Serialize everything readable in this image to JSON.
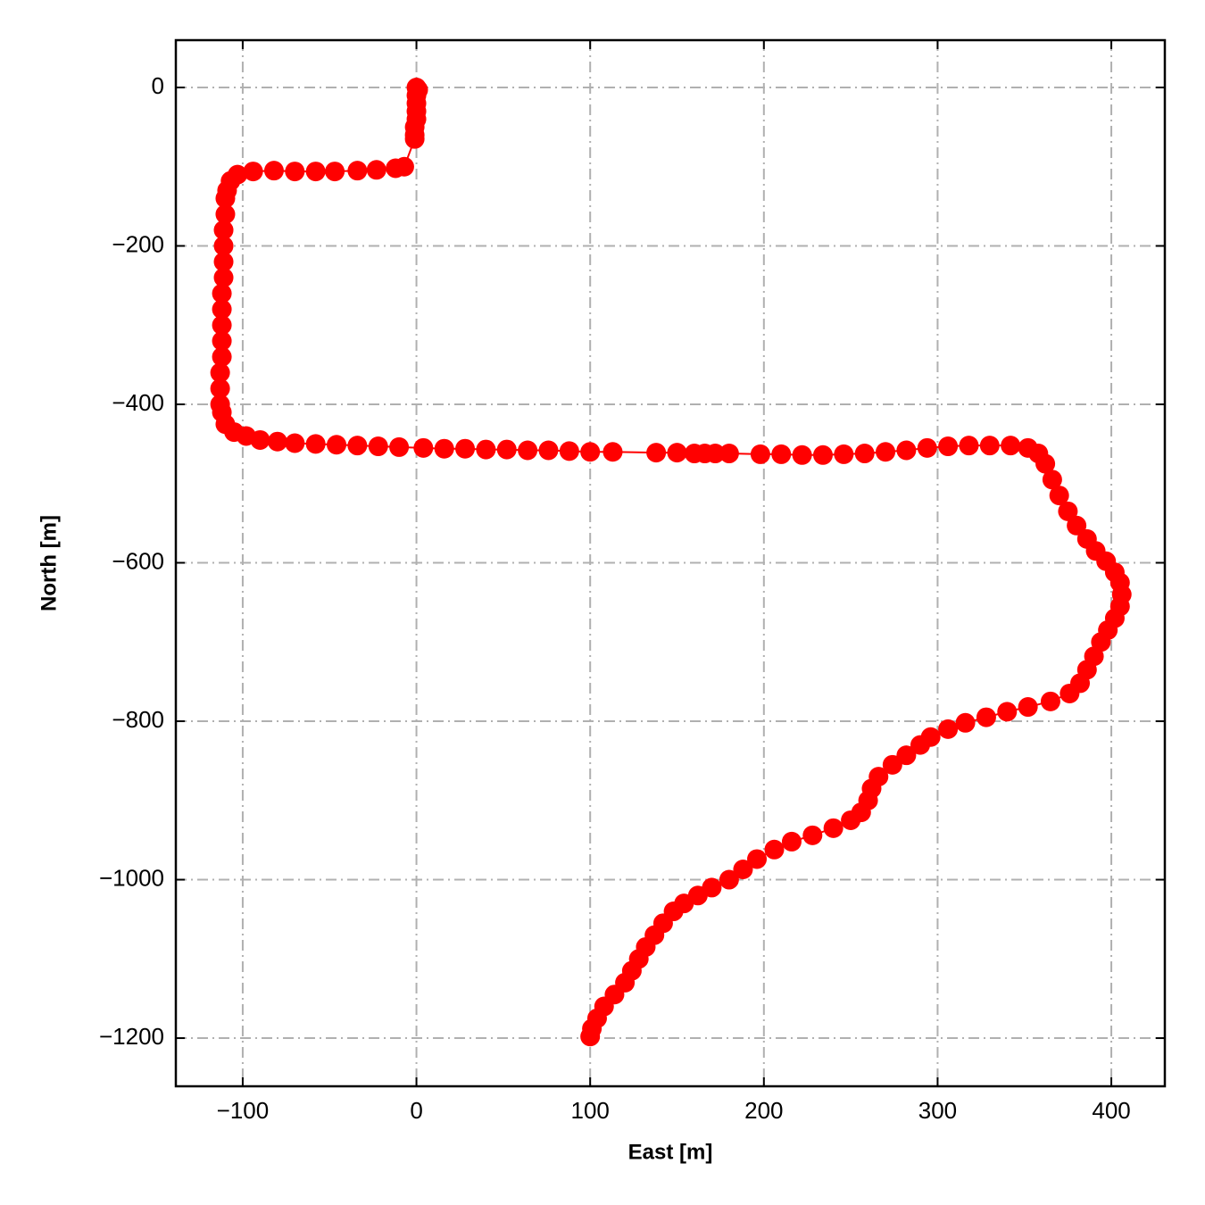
{
  "chart_data": {
    "type": "line",
    "color": "#ff0000",
    "markers": true,
    "grid": true,
    "xlabel": "East [m]",
    "ylabel": "North [m]",
    "xlim": [
      -138.5,
      430.8
    ],
    "ylim": [
      -1260.8,
      59.7
    ],
    "xticks": [
      {
        "value": -100,
        "label": "−100"
      },
      0,
      100,
      200,
      300,
      400
    ],
    "yticks": [
      0,
      {
        "value": -200,
        "label": "−200"
      },
      {
        "value": -400,
        "label": "−400"
      },
      {
        "value": -600,
        "label": "−600"
      },
      {
        "value": -800,
        "label": "−800"
      },
      {
        "value": -1000,
        "label": "−1000"
      },
      {
        "value": -1200,
        "label": "−1200"
      }
    ],
    "x": [
      0,
      1,
      0,
      0,
      0,
      0,
      -1,
      -1,
      -1,
      -7,
      -12,
      -23,
      -34,
      -47,
      -58,
      -70,
      -82,
      -94,
      -103,
      -107,
      -109,
      -110,
      -110,
      -111,
      -111,
      -111,
      -111,
      -112,
      -112,
      -112,
      -112,
      -112,
      -113,
      -113,
      -113,
      -112,
      -110,
      -105,
      -98,
      -90,
      -80,
      -70,
      -58,
      -46,
      -34,
      -22,
      -10,
      4,
      16,
      28,
      40,
      52,
      64,
      76,
      88,
      100,
      113,
      138,
      150,
      160,
      166,
      172,
      180,
      198,
      210,
      222,
      234,
      246,
      258,
      270,
      282,
      294,
      306,
      318,
      330,
      342,
      352,
      358,
      362,
      366,
      370,
      375,
      380,
      386,
      391,
      397,
      402,
      405,
      406,
      405,
      402,
      398,
      394,
      390,
      386,
      382,
      376,
      365,
      352,
      340,
      328,
      316,
      306,
      296,
      290,
      282,
      274,
      266,
      262,
      260,
      256,
      250,
      240,
      228,
      216,
      206,
      196,
      188,
      180,
      170,
      162,
      154,
      148,
      142,
      137,
      132,
      128,
      124,
      120,
      114,
      108,
      104,
      101,
      100
    ],
    "values": [
      0,
      -3,
      -10,
      -20,
      -30,
      -40,
      -50,
      -60,
      -65,
      -100,
      -102,
      -104,
      -105,
      -106,
      -106,
      -106,
      -105,
      -106,
      -110,
      -118,
      -130,
      -140,
      -160,
      -180,
      -200,
      -220,
      -240,
      -260,
      -280,
      -300,
      -320,
      -340,
      -360,
      -380,
      -400,
      -410,
      -425,
      -435,
      -440,
      -445,
      -447,
      -449,
      -450,
      -451,
      -452,
      -453,
      -454,
      -455,
      -456,
      -456,
      -457,
      -457,
      -458,
      -458,
      -459,
      -460,
      -460,
      -461,
      -461,
      -462,
      -462,
      -462,
      -462,
      -463,
      -463,
      -464,
      -464,
      -463,
      -462,
      -460,
      -458,
      -455,
      -453,
      -452,
      -452,
      -452,
      -455,
      -462,
      -475,
      -495,
      -515,
      -535,
      -553,
      -570,
      -585,
      -598,
      -612,
      -625,
      -640,
      -655,
      -670,
      -685,
      -700,
      -718,
      -735,
      -752,
      -765,
      -775,
      -782,
      -788,
      -795,
      -802,
      -810,
      -820,
      -830,
      -843,
      -855,
      -870,
      -885,
      -900,
      -915,
      -925,
      -935,
      -944,
      -952,
      -962,
      -974,
      -987,
      -1000,
      -1010,
      -1020,
      -1030,
      -1040,
      -1055,
      -1070,
      -1085,
      -1100,
      -1115,
      -1130,
      -1145,
      -1160,
      -1175,
      -1188,
      -1198
    ]
  }
}
